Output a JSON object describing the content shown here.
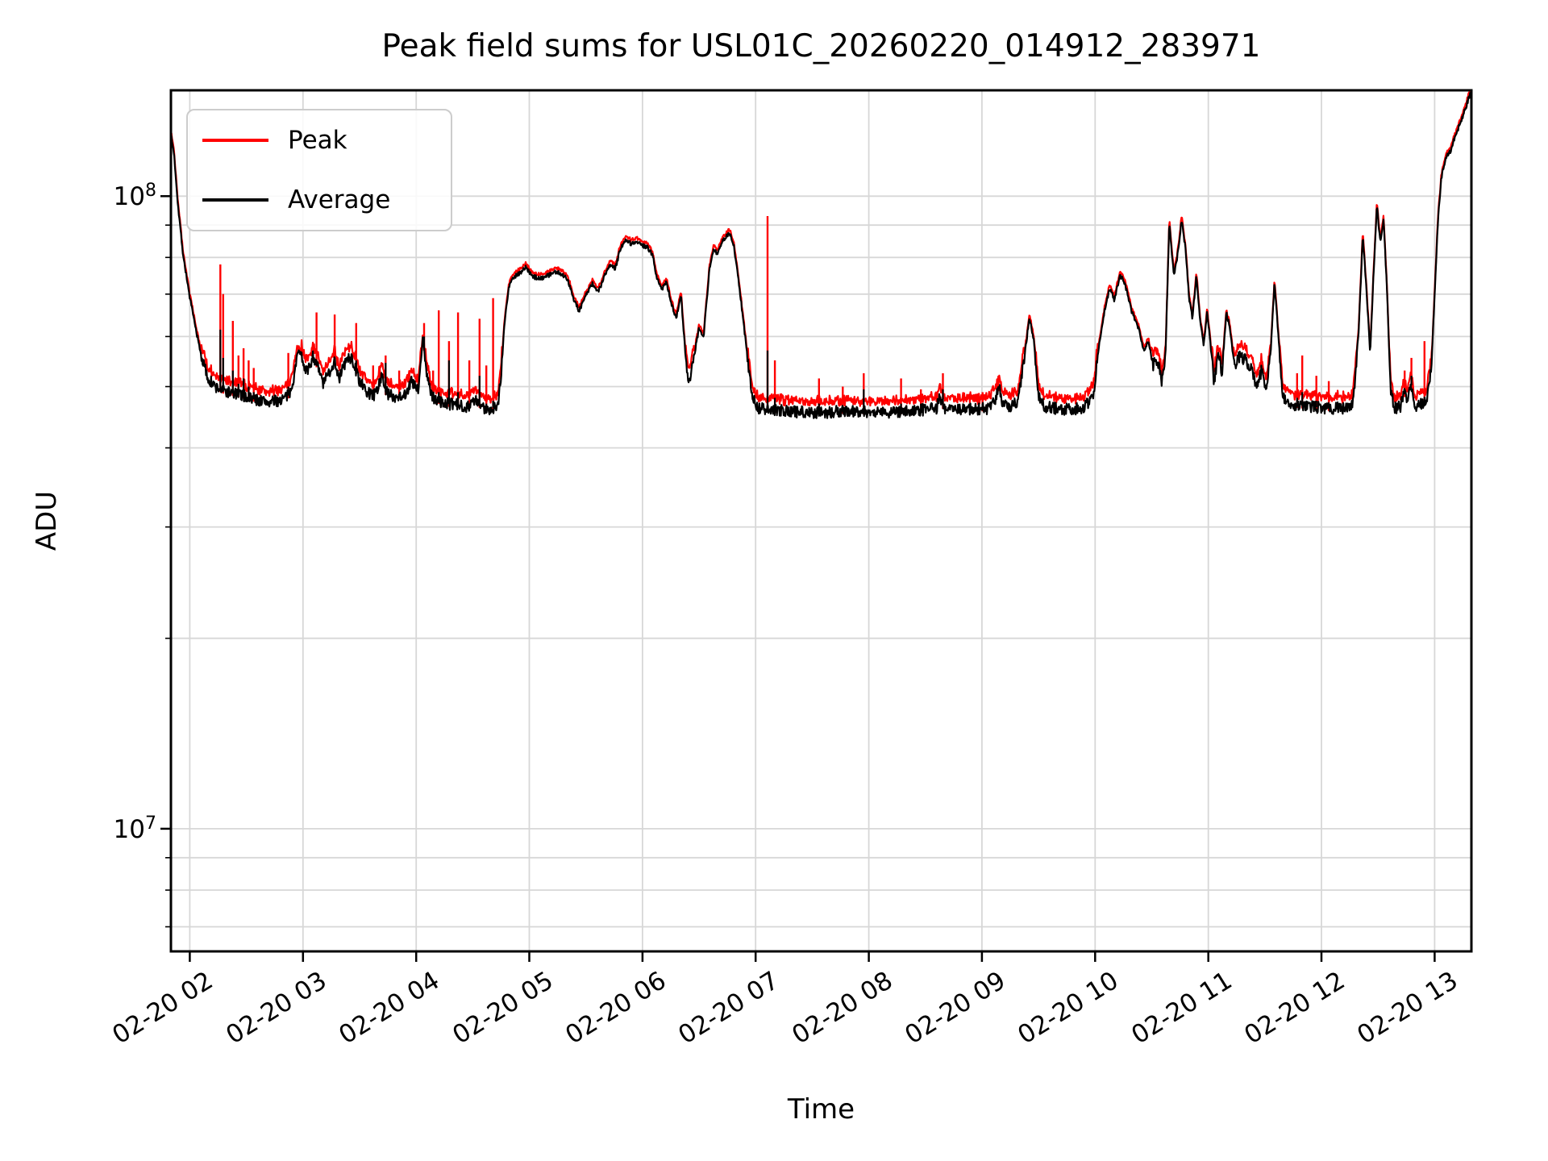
{
  "figure": {
    "title": "Peak field sums for USL01C_20260220_014912_283971",
    "xlabel": "Time",
    "ylabel": "ADU"
  },
  "legend": {
    "position": "upper left",
    "items": [
      {
        "label": "Peak",
        "color": "#ff0000"
      },
      {
        "label": "Average",
        "color": "#000000"
      }
    ]
  },
  "axes": {
    "x_tick_labels": [
      "02-20 02",
      "02-20 03",
      "02-20 04",
      "02-20 05",
      "02-20 06",
      "02-20 07",
      "02-20 08",
      "02-20 09",
      "02-20 10",
      "02-20 11",
      "02-20 12",
      "02-20 13"
    ],
    "y_tick_labels": [
      {
        "mantissa": "10",
        "exponent": "7"
      },
      {
        "mantissa": "10",
        "exponent": "8"
      }
    ]
  },
  "chart_data": {
    "type": "line",
    "title": "Peak field sums for USL01C_20260220_014912_283971",
    "xlabel": "Time",
    "ylabel": "ADU",
    "grid": true,
    "legend_position": "upper left",
    "x_axis": {
      "unit": "hours on 02-20",
      "range": [
        1.833,
        13.325
      ],
      "tick_hours": [
        2,
        3,
        4,
        5,
        6,
        7,
        8,
        9,
        10,
        11,
        12,
        13
      ],
      "tick_labels": [
        "02-20 02",
        "02-20 03",
        "02-20 04",
        "02-20 05",
        "02-20 06",
        "02-20 07",
        "02-20 08",
        "02-20 09",
        "02-20 10",
        "02-20 11",
        "02-20 12",
        "02-20 13"
      ]
    },
    "y_axis": {
      "scale": "log",
      "range": [
        6400000.0,
        147000000.0
      ],
      "major_ticks": [
        10000000.0,
        100000000.0
      ],
      "minor_gridlines": [
        7000000.0,
        8000000.0,
        9000000.0,
        20000000.0,
        30000000.0,
        40000000.0,
        50000000.0,
        60000000.0,
        70000000.0,
        80000000.0,
        90000000.0
      ]
    },
    "style": {
      "grid_color": "#d7d7d7",
      "spine_color": "#000000",
      "peak_color": "#ff0000",
      "average_color": "#000000",
      "line_width": 2.2
    },
    "noise": {
      "seed": 7,
      "flat_amp": 0.0095,
      "smooth_amp": 0.0035,
      "flat_threshold": 56000000.0,
      "red_offset_flat": 0.013,
      "red_offset_smooth": 0.004
    },
    "sample_step_hours": 0.005,
    "series": [
      {
        "name": "Average",
        "color": "#000000",
        "keypoints": [
          [
            1.833,
            125000000.0
          ],
          [
            1.86,
            117000000.0
          ],
          [
            1.895,
            97000000.0
          ],
          [
            1.94,
            81000000.0
          ],
          [
            2.0,
            69000000.0
          ],
          [
            2.05,
            62000000.0
          ],
          [
            2.1,
            56000000.0
          ],
          [
            2.16,
            51500000.0
          ],
          [
            2.22,
            50000000.0
          ],
          [
            2.3,
            49200000.0
          ],
          [
            2.4,
            48700000.0
          ],
          [
            2.5,
            48200000.0
          ],
          [
            2.62,
            47500000.0
          ],
          [
            2.72,
            47200000.0
          ],
          [
            2.82,
            47800000.0
          ],
          [
            2.88,
            48500000.0
          ],
          [
            2.93,
            53000000.0
          ],
          [
            2.96,
            57500000.0
          ],
          [
            3.0,
            55000000.0
          ],
          [
            3.04,
            52500000.0
          ],
          [
            3.09,
            56000000.0
          ],
          [
            3.14,
            53000000.0
          ],
          [
            3.18,
            50500000.0
          ],
          [
            3.24,
            53000000.0
          ],
          [
            3.28,
            55000000.0
          ],
          [
            3.32,
            51500000.0
          ],
          [
            3.38,
            55000000.0
          ],
          [
            3.43,
            55500000.0
          ],
          [
            3.5,
            51000000.0
          ],
          [
            3.56,
            49000000.0
          ],
          [
            3.64,
            48500000.0
          ],
          [
            3.7,
            52500000.0
          ],
          [
            3.73,
            49000000.0
          ],
          [
            3.8,
            48200000.0
          ],
          [
            3.9,
            48500000.0
          ],
          [
            3.96,
            51000000.0
          ],
          [
            4.02,
            49000000.0
          ],
          [
            4.06,
            60000000.0
          ],
          [
            4.09,
            53000000.0
          ],
          [
            4.14,
            48000000.0
          ],
          [
            4.25,
            47000000.0
          ],
          [
            4.35,
            46800000.0
          ],
          [
            4.45,
            46500000.0
          ],
          [
            4.52,
            47500000.0
          ],
          [
            4.6,
            46000000.0
          ],
          [
            4.66,
            46200000.0
          ],
          [
            4.72,
            46500000.0
          ],
          [
            4.75,
            52000000.0
          ],
          [
            4.78,
            63000000.0
          ],
          [
            4.82,
            72000000.0
          ],
          [
            4.86,
            74500000.0
          ],
          [
            4.91,
            75500000.0
          ],
          [
            4.97,
            77200000.0
          ],
          [
            5.03,
            74500000.0
          ],
          [
            5.1,
            74200000.0
          ],
          [
            5.17,
            75000000.0
          ],
          [
            5.23,
            76000000.0
          ],
          [
            5.29,
            75200000.0
          ],
          [
            5.34,
            73800000.0
          ],
          [
            5.39,
            69000000.0
          ],
          [
            5.44,
            65800000.0
          ],
          [
            5.5,
            69800000.0
          ],
          [
            5.56,
            72800000.0
          ],
          [
            5.61,
            70500000.0
          ],
          [
            5.67,
            75200000.0
          ],
          [
            5.72,
            78000000.0
          ],
          [
            5.76,
            76800000.0
          ],
          [
            5.81,
            83200000.0
          ],
          [
            5.86,
            85500000.0
          ],
          [
            5.9,
            84000000.0
          ],
          [
            5.95,
            85000000.0
          ],
          [
            6.0,
            83500000.0
          ],
          [
            6.05,
            82800000.0
          ],
          [
            6.09,
            80500000.0
          ],
          [
            6.13,
            74000000.0
          ],
          [
            6.17,
            71000000.0
          ],
          [
            6.21,
            73500000.0
          ],
          [
            6.26,
            67000000.0
          ],
          [
            6.3,
            64200000.0
          ],
          [
            6.34,
            70000000.0
          ],
          [
            6.38,
            56000000.0
          ],
          [
            6.41,
            50800000.0
          ],
          [
            6.46,
            56500000.0
          ],
          [
            6.5,
            62000000.0
          ],
          [
            6.54,
            60000000.0
          ],
          [
            6.59,
            76000000.0
          ],
          [
            6.63,
            83000000.0
          ],
          [
            6.66,
            81000000.0
          ],
          [
            6.71,
            85000000.0
          ],
          [
            6.77,
            87500000.0
          ],
          [
            6.81,
            83000000.0
          ],
          [
            6.85,
            73000000.0
          ],
          [
            6.89,
            64000000.0
          ],
          [
            6.93,
            55000000.0
          ],
          [
            6.97,
            48500000.0
          ],
          [
            7.02,
            46200000.0
          ],
          [
            7.2,
            45800000.0
          ],
          [
            7.4,
            45600000.0
          ],
          [
            7.6,
            45500000.0
          ],
          [
            7.8,
            45800000.0
          ],
          [
            8.0,
            45600000.0
          ],
          [
            8.2,
            45600000.0
          ],
          [
            8.4,
            45800000.0
          ],
          [
            8.6,
            46200000.0
          ],
          [
            8.63,
            48500000.0
          ],
          [
            8.66,
            46200000.0
          ],
          [
            8.85,
            46000000.0
          ],
          [
            9.05,
            46200000.0
          ],
          [
            9.12,
            48000000.0
          ],
          [
            9.15,
            50000000.0
          ],
          [
            9.18,
            47200000.0
          ],
          [
            9.25,
            46500000.0
          ],
          [
            9.32,
            47200000.0
          ],
          [
            9.37,
            55000000.0
          ],
          [
            9.42,
            64200000.0
          ],
          [
            9.46,
            59000000.0
          ],
          [
            9.5,
            48500000.0
          ],
          [
            9.55,
            46500000.0
          ],
          [
            9.7,
            46000000.0
          ],
          [
            9.88,
            46200000.0
          ],
          [
            9.98,
            48000000.0
          ],
          [
            10.04,
            59000000.0
          ],
          [
            10.09,
            67000000.0
          ],
          [
            10.13,
            71500000.0
          ],
          [
            10.17,
            68500000.0
          ],
          [
            10.22,
            75000000.0
          ],
          [
            10.26,
            73000000.0
          ],
          [
            10.32,
            66000000.0
          ],
          [
            10.38,
            62000000.0
          ],
          [
            10.43,
            57000000.0
          ],
          [
            10.47,
            59000000.0
          ],
          [
            10.51,
            54000000.0
          ],
          [
            10.55,
            55500000.0
          ],
          [
            10.59,
            50500000.0
          ],
          [
            10.62,
            55000000.0
          ],
          [
            10.655,
            91000000.0
          ],
          [
            10.695,
            75000000.0
          ],
          [
            10.73,
            81000000.0
          ],
          [
            10.765,
            92000000.0
          ],
          [
            10.8,
            82000000.0
          ],
          [
            10.83,
            69000000.0
          ],
          [
            10.86,
            64000000.0
          ],
          [
            10.895,
            75000000.0
          ],
          [
            10.93,
            63000000.0
          ],
          [
            10.96,
            58000000.0
          ],
          [
            10.99,
            66000000.0
          ],
          [
            11.02,
            58000000.0
          ],
          [
            11.05,
            51000000.0
          ],
          [
            11.09,
            56500000.0
          ],
          [
            11.12,
            52500000.0
          ],
          [
            11.16,
            65500000.0
          ],
          [
            11.19,
            62000000.0
          ],
          [
            11.23,
            54000000.0
          ],
          [
            11.28,
            56000000.0
          ],
          [
            11.33,
            55000000.0
          ],
          [
            11.38,
            53500000.0
          ],
          [
            11.43,
            50000000.0
          ],
          [
            11.47,
            53000000.0
          ],
          [
            11.51,
            49200000.0
          ],
          [
            11.55,
            56000000.0
          ],
          [
            11.585,
            73000000.0
          ],
          [
            11.62,
            60000000.0
          ],
          [
            11.66,
            48000000.0
          ],
          [
            11.75,
            46800000.0
          ],
          [
            11.9,
            46500000.0
          ],
          [
            12.05,
            46200000.0
          ],
          [
            12.2,
            46200000.0
          ],
          [
            12.28,
            47000000.0
          ],
          [
            12.33,
            62000000.0
          ],
          [
            12.365,
            87000000.0
          ],
          [
            12.4,
            70000000.0
          ],
          [
            12.43,
            56500000.0
          ],
          [
            12.46,
            75000000.0
          ],
          [
            12.49,
            97000000.0
          ],
          [
            12.52,
            84500000.0
          ],
          [
            12.55,
            92000000.0
          ],
          [
            12.58,
            70000000.0
          ],
          [
            12.61,
            50000000.0
          ],
          [
            12.64,
            46200000.0
          ],
          [
            12.7,
            46500000.0
          ],
          [
            12.73,
            49000000.0
          ],
          [
            12.76,
            46800000.0
          ],
          [
            12.79,
            51000000.0
          ],
          [
            12.82,
            46600000.0
          ],
          [
            12.88,
            47000000.0
          ],
          [
            12.93,
            47500000.0
          ],
          [
            12.97,
            53000000.0
          ],
          [
            13.0,
            70000000.0
          ],
          [
            13.03,
            92000000.0
          ],
          [
            13.06,
            107000000.0
          ],
          [
            13.1,
            115000000.0
          ],
          [
            13.14,
            118000000.0
          ],
          [
            13.18,
            124000000.0
          ],
          [
            13.23,
            131000000.0
          ],
          [
            13.28,
            139000000.0
          ],
          [
            13.325,
            147000000.0
          ]
        ]
      },
      {
        "name": "Peak",
        "color": "#ff0000",
        "relation": "tracks Average slightly above it; vertical spikes listed as [t_hours, peak_top, average_top]",
        "spikes": [
          [
            2.27,
            78000000.0,
            61500000.0
          ],
          [
            2.295,
            70000000.0,
            55500000.0
          ],
          [
            2.38,
            63500000.0,
            53000000.0
          ],
          [
            2.43,
            56000000.0,
            50500000.0
          ],
          [
            2.475,
            57500000.0,
            51500000.0
          ],
          [
            2.52,
            55000000.0,
            50000000.0
          ],
          [
            2.565,
            53500000.0,
            49000000.0
          ],
          [
            2.87,
            56500000.0,
            50000000.0
          ],
          [
            3.12,
            65500000.0,
            55000000.0
          ],
          [
            3.28,
            65000000.0,
            55500000.0
          ],
          [
            3.47,
            63000000.0,
            55000000.0
          ],
          [
            3.62,
            54000000.0,
            49500000.0
          ],
          [
            3.68,
            53000000.0,
            50000000.0
          ],
          [
            3.73,
            56000000.0,
            54500000.0
          ],
          [
            3.85,
            53000000.0,
            48500000.0
          ],
          [
            3.94,
            53000000.0,
            51000000.0
          ],
          [
            4.07,
            63000000.0,
            60000000.0
          ],
          [
            4.15,
            53000000.0,
            48000000.0
          ],
          [
            4.2,
            66000000.0,
            49000000.0
          ],
          [
            4.29,
            59000000.0,
            55000000.0
          ],
          [
            4.37,
            65500000.0,
            49000000.0
          ],
          [
            4.47,
            55000000.0,
            47000000.0
          ],
          [
            4.56,
            64000000.0,
            52000000.0
          ],
          [
            4.62,
            54000000.0,
            47000000.0
          ],
          [
            4.68,
            69000000.0,
            47500000.0
          ],
          [
            7.105,
            93000000.0,
            57000000.0
          ],
          [
            7.17,
            55000000.0,
            48000000.0
          ],
          [
            7.56,
            51500000.0,
            47000000.0
          ],
          [
            7.77,
            50000000.0,
            46600000.0
          ],
          [
            7.955,
            52500000.0,
            49500000.0
          ],
          [
            8.285,
            51500000.0,
            47000000.0
          ],
          [
            8.46,
            49500000.0,
            47000000.0
          ],
          [
            8.655,
            52500000.0,
            49500000.0
          ],
          [
            9.005,
            49000000.0,
            47000000.0
          ],
          [
            9.145,
            52000000.0,
            50000000.0
          ],
          [
            11.785,
            52500000.0,
            48000000.0
          ],
          [
            11.83,
            56000000.0,
            49000000.0
          ],
          [
            11.955,
            52000000.0,
            47500000.0
          ],
          [
            12.065,
            51000000.0,
            47000000.0
          ],
          [
            12.735,
            53000000.0,
            49500000.0
          ],
          [
            12.795,
            55500000.0,
            52000000.0
          ],
          [
            12.91,
            59000000.0,
            48200000.0
          ]
        ]
      }
    ]
  }
}
